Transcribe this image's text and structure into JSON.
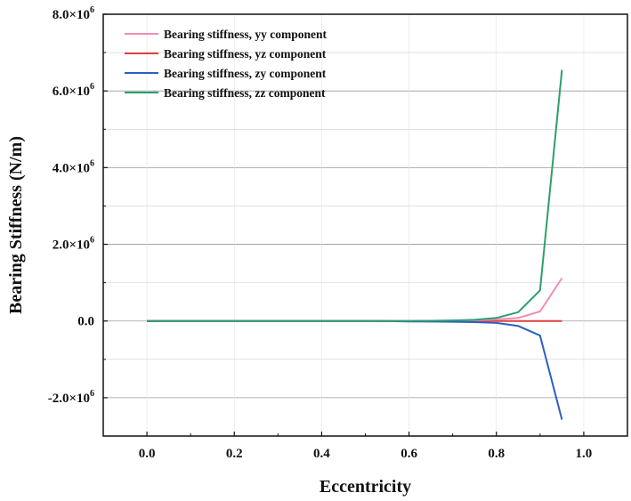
{
  "chart_data": {
    "type": "line",
    "xlabel": "Eccentricity",
    "ylabel": "Bearing Stiffness (N/m)",
    "xlim": [
      -0.1,
      1.1
    ],
    "ylim": [
      -3000000.0,
      8000000.0
    ],
    "x_ticks": [
      0.0,
      0.2,
      0.4,
      0.6,
      0.8,
      1.0
    ],
    "x_tick_labels": [
      "0.0",
      "0.2",
      "0.4",
      "0.6",
      "0.8",
      "1.0"
    ],
    "y_ticks": [
      -2000000.0,
      0.0,
      2000000.0,
      4000000.0,
      6000000.0,
      8000000.0
    ],
    "y_tick_labels": [
      {
        "mantissa": "-2.0×10",
        "exp": "6"
      },
      {
        "mantissa": "0.0",
        "exp": ""
      },
      {
        "mantissa": "2.0×10",
        "exp": "6"
      },
      {
        "mantissa": "4.0×10",
        "exp": "6"
      },
      {
        "mantissa": "6.0×10",
        "exp": "6"
      },
      {
        "mantissa": "8.0×10",
        "exp": "6"
      }
    ],
    "grid": true,
    "legend_position": "top-left",
    "x": [
      0.0,
      0.05,
      0.1,
      0.15,
      0.2,
      0.25,
      0.3,
      0.35,
      0.4,
      0.45,
      0.5,
      0.55,
      0.6,
      0.65,
      0.7,
      0.75,
      0.8,
      0.85,
      0.9,
      0.95
    ],
    "series": [
      {
        "name": "Bearing stiffness, yy component",
        "color": "#f28cb8",
        "values": [
          0,
          0,
          0,
          0,
          0,
          0,
          0,
          0,
          0,
          0,
          0,
          0,
          0,
          5000,
          10000,
          20000,
          40000,
          80000,
          250000,
          1120000
        ]
      },
      {
        "name": "Bearing stiffness, yz component",
        "color": "#e0403c",
        "values": [
          0,
          0,
          0,
          0,
          0,
          0,
          0,
          0,
          0,
          0,
          0,
          0,
          0,
          0,
          0,
          0,
          0,
          0,
          0,
          0
        ]
      },
      {
        "name": "Bearing stiffness, zy component",
        "color": "#2b5fc2",
        "values": [
          0,
          0,
          0,
          0,
          0,
          0,
          0,
          0,
          0,
          0,
          0,
          -5000,
          -10000,
          -15000,
          -20000,
          -30000,
          -50000,
          -130000,
          -380000,
          -2570000
        ]
      },
      {
        "name": "Bearing stiffness, zz component",
        "color": "#2e9e6b",
        "values": [
          0,
          0,
          0,
          0,
          0,
          0,
          0,
          0,
          0,
          0,
          0,
          0,
          0,
          5000,
          15000,
          30000,
          80000,
          230000,
          800000,
          6550000
        ]
      }
    ]
  }
}
